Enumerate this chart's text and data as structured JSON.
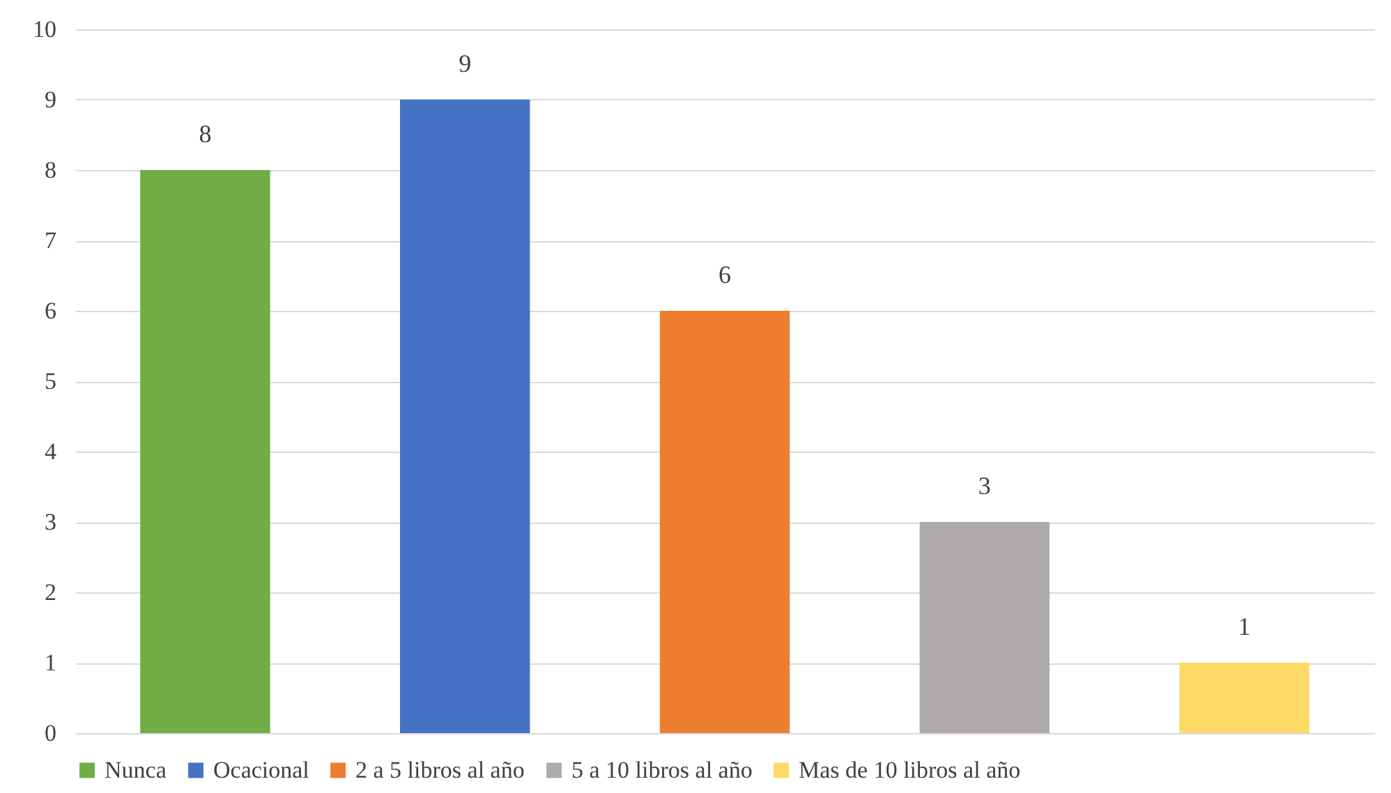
{
  "chart_data": {
    "type": "bar",
    "categories": [
      null,
      null,
      null,
      null,
      null
    ],
    "series": [
      {
        "name": "Nunca",
        "color": "#70ad47",
        "values": [
          8,
          null,
          null,
          null,
          null
        ]
      },
      {
        "name": "Ocacional",
        "color": "#4472c4",
        "values": [
          null,
          9,
          null,
          null,
          null
        ]
      },
      {
        "name": "2 a 5 libros al año",
        "color": "#ed7d31",
        "values": [
          null,
          null,
          6,
          null,
          null
        ]
      },
      {
        "name": "5 a 10 libros al año",
        "color": "#aeaaaa",
        "values": [
          null,
          null,
          null,
          3,
          null
        ]
      },
      {
        "name": "Mas de 10 libros al año",
        "color": "#ffd966",
        "values": [
          null,
          null,
          null,
          null,
          1
        ]
      }
    ],
    "ylim": [
      0,
      10
    ],
    "yticks": [
      0,
      1,
      2,
      3,
      4,
      5,
      6,
      7,
      8,
      9,
      10
    ],
    "grid": "y",
    "legend": "bottom",
    "data_labels": true,
    "tick_labels": "y"
  }
}
